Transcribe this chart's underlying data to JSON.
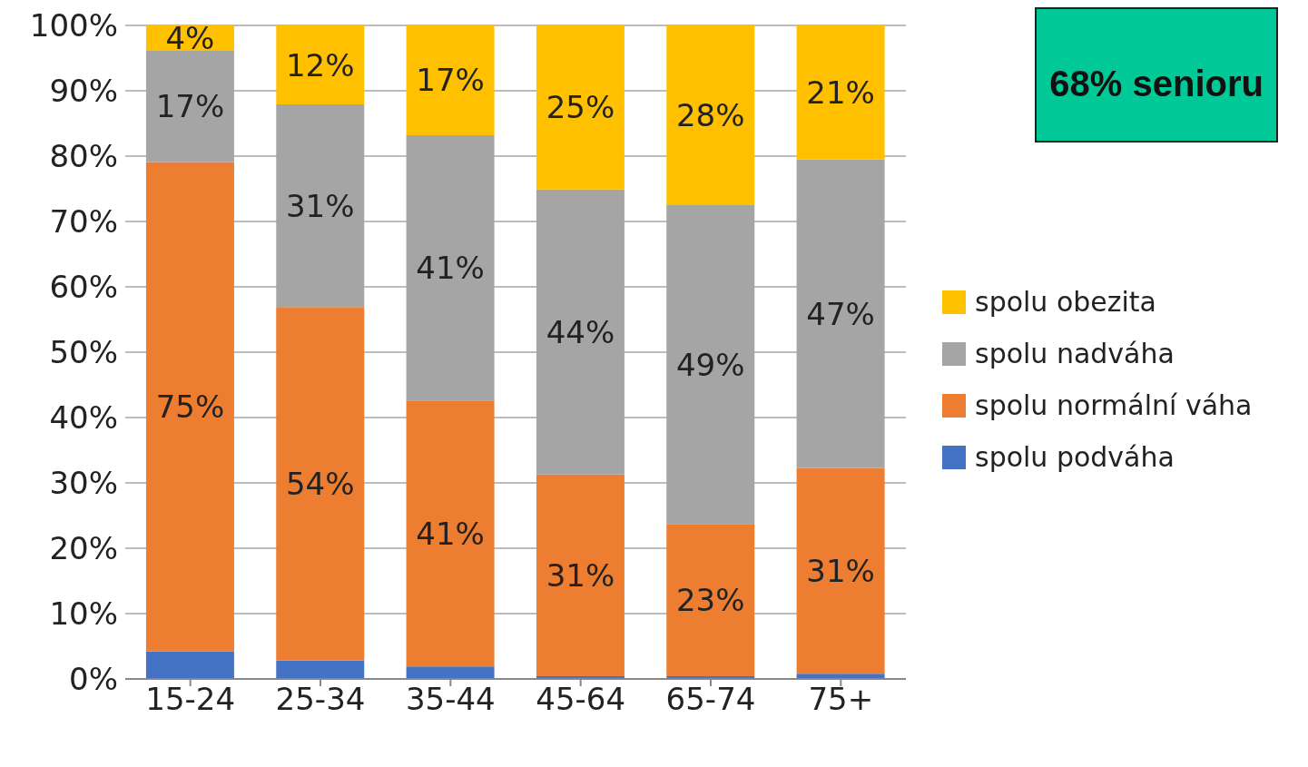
{
  "chart_data": {
    "type": "bar",
    "stacked": true,
    "categories": [
      "15-24",
      "25-34",
      "35-44",
      "45-64",
      "65-74",
      "75+"
    ],
    "series": [
      {
        "name": "spolu podváha",
        "color": "#4472c4",
        "values": [
          4.2,
          2.8,
          1.9,
          0.4,
          0.4,
          0.8
        ]
      },
      {
        "name": "spolu normální váha",
        "color": "#ed7d31",
        "values": [
          74.9,
          54.1,
          40.7,
          30.9,
          23.3,
          31.5
        ],
        "value_labels": [
          "75%",
          "54%",
          "41%",
          "31%",
          "23%",
          "31%"
        ]
      },
      {
        "name": "spolu nadváha",
        "color": "#a5a5a5",
        "values": [
          17.0,
          31.0,
          40.6,
          43.6,
          48.8,
          47.2
        ],
        "value_labels": [
          "17%",
          "31%",
          "41%",
          "44%",
          "49%",
          "47%"
        ]
      },
      {
        "name": "spolu obezita",
        "color": "#ffc000",
        "values": [
          3.9,
          12.1,
          16.8,
          25.1,
          27.5,
          20.5
        ],
        "value_labels": [
          "4%",
          "12%",
          "17%",
          "25%",
          "28%",
          "21%"
        ]
      }
    ],
    "ylim": [
      0,
      100
    ],
    "yticks": [
      {
        "value": 0,
        "label": "0%"
      },
      {
        "value": 10,
        "label": "10%"
      },
      {
        "value": 20,
        "label": "20%"
      },
      {
        "value": 30,
        "label": "30%"
      },
      {
        "value": 40,
        "label": "40%"
      },
      {
        "value": 50,
        "label": "50%"
      },
      {
        "value": 60,
        "label": "60%"
      },
      {
        "value": 70,
        "label": "70%"
      },
      {
        "value": 80,
        "label": "80%"
      },
      {
        "value": 90,
        "label": "90%"
      },
      {
        "value": 100,
        "label": "100%"
      }
    ],
    "grid": "y",
    "legend": "right",
    "annotations": [
      "68% senioru"
    ]
  }
}
